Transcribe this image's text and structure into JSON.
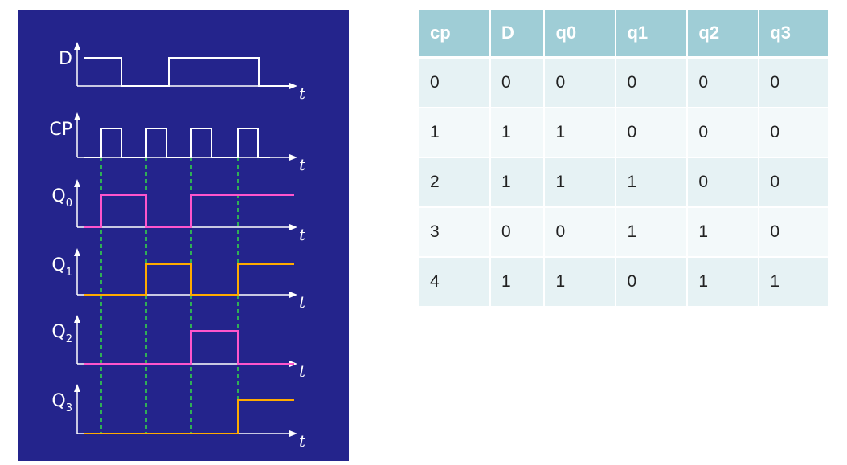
{
  "timing_diagram": {
    "time_axis_label": "t",
    "signals": [
      {
        "name": "D",
        "sub": "",
        "color": "#ffffff",
        "levels": [
          1,
          0,
          1,
          0
        ]
      },
      {
        "name": "CP",
        "sub": "",
        "color": "#ffffff",
        "pulses": 4
      },
      {
        "name": "Q",
        "sub": "0",
        "color": "#ff55cc",
        "levels": [
          0,
          1,
          0,
          1
        ]
      },
      {
        "name": "Q",
        "sub": "1",
        "color": "#ffaa00",
        "levels": [
          0,
          0,
          1,
          0,
          1
        ]
      },
      {
        "name": "Q",
        "sub": "2",
        "color": "#ff55cc",
        "levels": [
          0,
          0,
          0,
          1,
          0
        ]
      },
      {
        "name": "Q",
        "sub": "3",
        "color": "#ffaa00",
        "levels": [
          0,
          0,
          0,
          0,
          1
        ]
      }
    ],
    "guide_color": "#33dd44"
  },
  "truth_table": {
    "headers": [
      "cp",
      "D",
      "q0",
      "q1",
      "q2",
      "q3"
    ],
    "rows": [
      [
        "0",
        "0",
        "0",
        "0",
        "0",
        "0"
      ],
      [
        "1",
        "1",
        "1",
        "0",
        "0",
        "0"
      ],
      [
        "2",
        "1",
        "1",
        "1",
        "0",
        "0"
      ],
      [
        "3",
        "0",
        "0",
        "1",
        "1",
        "0"
      ],
      [
        "4",
        "1",
        "1",
        "0",
        "1",
        "1"
      ]
    ]
  }
}
